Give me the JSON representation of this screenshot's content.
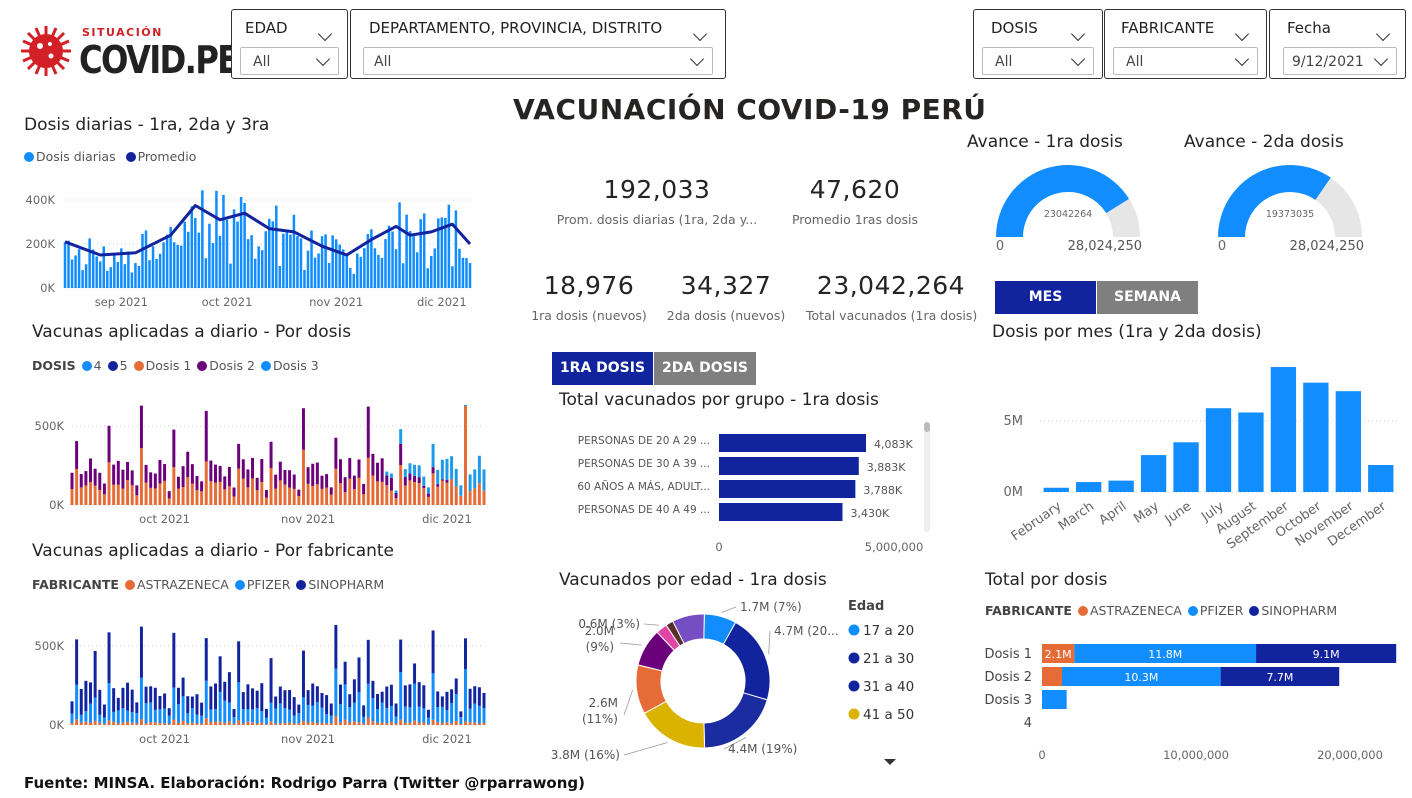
{
  "header": {
    "brand_small": "SITUACIÓN",
    "brand_large": "COVID.PE",
    "title": "VACUNACIÓN COVID-19 PERÚ"
  },
  "slicers": {
    "edad": {
      "label": "EDAD",
      "value": "All"
    },
    "region": {
      "label": "DEPARTAMENTO, PROVINCIA, DISTRITO",
      "value": "All"
    },
    "dosis": {
      "label": "DOSIS",
      "value": "All"
    },
    "fabricante": {
      "label": "FABRICANTE",
      "value": "All"
    },
    "fecha": {
      "label": "Fecha",
      "value": "9/12/2021"
    }
  },
  "colors": {
    "light_blue": "#118DFF",
    "dark_blue": "#12239E",
    "orange": "#E66C37",
    "purple": "#6B007B",
    "pink": "#E044A7",
    "violet": "#744EC2",
    "yellow": "#D9B300",
    "maroon": "#5B2C2C",
    "gray": "#7F7F7F"
  },
  "kpis": {
    "prom_diarias": {
      "value": "192,033",
      "label": "Prom. dosis diarias (1ra, 2da y..."
    },
    "prom_1ras": {
      "value": "47,620",
      "label": "Promedio 1ras dosis"
    },
    "d1_nuevos": {
      "value": "18,976",
      "label": "1ra dosis (nuevos)"
    },
    "d2_nuevos": {
      "value": "34,327",
      "label": "2da dosis (nuevos)"
    },
    "total_vac": {
      "value": "23,042,264",
      "label": "Total vacunados (1ra dosis)"
    }
  },
  "buttons": {
    "primera": "1RA DOSIS",
    "segunda": "2DA DOSIS",
    "mes": "MES",
    "semana": "SEMANA"
  },
  "footer": "Fuente: MINSA. Elaboración: Rodrigo Parra (Twitter @rparrawong)",
  "chart_data": [
    {
      "id": "daily",
      "type": "bar",
      "title": "Dosis diarias - 1ra, 2da y 3ra",
      "legend": [
        "Dosis diarias",
        "Promedio"
      ],
      "y_ticks": [
        "400K",
        "200K",
        "0K"
      ],
      "ylim": [
        0,
        500000
      ],
      "x_ticks": [
        "sep 2021",
        "oct 2021",
        "nov 2021",
        "dic 2021"
      ],
      "x_start": "2021-08-16",
      "x_end": "2021-12-09",
      "avg_line": [
        {
          "x": "2021-08-16",
          "y": 210000
        },
        {
          "x": "2021-08-26",
          "y": 150000
        },
        {
          "x": "2021-09-05",
          "y": 160000
        },
        {
          "x": "2021-09-15",
          "y": 240000
        },
        {
          "x": "2021-09-22",
          "y": 375000
        },
        {
          "x": "2021-09-29",
          "y": 310000
        },
        {
          "x": "2021-10-06",
          "y": 340000
        },
        {
          "x": "2021-10-13",
          "y": 270000
        },
        {
          "x": "2021-10-20",
          "y": 255000
        },
        {
          "x": "2021-10-28",
          "y": 190000
        },
        {
          "x": "2021-11-04",
          "y": 150000
        },
        {
          "x": "2021-11-11",
          "y": 220000
        },
        {
          "x": "2021-11-18",
          "y": 280000
        },
        {
          "x": "2021-11-22",
          "y": 240000
        },
        {
          "x": "2021-11-28",
          "y": 255000
        },
        {
          "x": "2021-12-04",
          "y": 290000
        },
        {
          "x": "2021-12-09",
          "y": 200000
        }
      ]
    },
    {
      "id": "by_dose",
      "type": "stacked_bar",
      "title": "Vacunas aplicadas a diario - Por dosis",
      "legend_title": "DOSIS",
      "series": [
        "4",
        "5",
        "Dosis 1",
        "Dosis 2",
        "Dosis 3"
      ],
      "y_ticks": [
        "500K",
        "0K"
      ],
      "ylim": [
        0,
        600000
      ],
      "x_ticks": [
        "oct 2021",
        "nov 2021",
        "dic 2021"
      ],
      "x_start": "2021-09-11",
      "x_end": "2021-12-09"
    },
    {
      "id": "by_maker",
      "type": "stacked_bar",
      "title": "Vacunas aplicadas a diario - Por fabricante",
      "legend_title": "FABRICANTE",
      "series": [
        "ASTRAZENECA",
        "PFIZER",
        "SINOPHARM"
      ],
      "y_ticks": [
        "500K",
        "0K"
      ],
      "ylim": [
        0,
        600000
      ],
      "x_ticks": [
        "oct 2021",
        "nov 2021",
        "dic 2021"
      ],
      "x_start": "2021-09-11",
      "x_end": "2021-12-09"
    },
    {
      "id": "gauge1",
      "type": "gauge",
      "title": "Avance - 1ra dosis",
      "value": 23042264,
      "value_label": "23042264",
      "min_label": "0",
      "max": 28024250,
      "max_label": "28,024,250"
    },
    {
      "id": "gauge2",
      "type": "gauge",
      "title": "Avance - 2da dosis",
      "value": 19373035,
      "value_label": "19373035",
      "min_label": "0",
      "max": 28024250,
      "max_label": "28,024,250"
    },
    {
      "id": "groups",
      "type": "hbar",
      "title": "Total vacunados por grupo - 1ra dosis",
      "categories": [
        "PERSONAS DE 20 A 29 ...",
        "PERSONAS DE 30 A 39 ...",
        "60 AÑOS A MÁS, ADULT...",
        "PERSONAS DE 40 A 49 ..."
      ],
      "values": [
        4083000,
        3883000,
        3788000,
        3430000
      ],
      "value_labels": [
        "4,083K",
        "3,883K",
        "3,788K",
        "3,430K"
      ],
      "xlim": [
        0,
        5000000
      ],
      "x_ticks": [
        "0",
        "5,000,000"
      ]
    },
    {
      "id": "age_donut",
      "type": "pie",
      "title": "Vacunados por edad - 1ra dosis",
      "legend_title": "Edad",
      "legend": [
        "17 a 20",
        "21 a 30",
        "31 a 40",
        "41 a 50"
      ],
      "slices": [
        {
          "value": 1.7,
          "label": "1.7M (7%)"
        },
        {
          "value": 4.7,
          "label": "4.7M (20..."
        },
        {
          "value": 4.4,
          "label": "4.4M (19%)"
        },
        {
          "value": 3.8,
          "label": "3.8M (16%)"
        },
        {
          "value": 2.6,
          "label": "2.6M (11%)"
        },
        {
          "value": 2.0,
          "label": "2.0M (9%)"
        },
        {
          "value": 0.6,
          "label": "0.6M (3%)"
        },
        {
          "value": 2.2,
          "label": ""
        }
      ]
    },
    {
      "id": "monthly",
      "type": "bar",
      "title": "Dosis por mes (1ra y 2da dosis)",
      "categories": [
        "February",
        "March",
        "April",
        "May",
        "June",
        "July",
        "August",
        "September",
        "October",
        "November",
        "December"
      ],
      "values": [
        300000,
        700000,
        800000,
        2600000,
        3500000,
        5900000,
        5600000,
        8800000,
        7700000,
        7100000,
        1900000
      ],
      "y_ticks": [
        "5M",
        "0M"
      ],
      "ylim": [
        0,
        10000000
      ]
    },
    {
      "id": "total_dose",
      "type": "stacked_hbar",
      "title": "Total por dosis",
      "legend_title": "FABRICANTE",
      "series": [
        "ASTRAZENECA",
        "PFIZER",
        "SINOPHARM"
      ],
      "categories": [
        "Dosis 1",
        "Dosis 2",
        "Dosis 3",
        "4"
      ],
      "values": [
        [
          2100000,
          11800000,
          9100000
        ],
        [
          1300000,
          10300000,
          7700000
        ],
        [
          0,
          1600000,
          0
        ],
        [
          0,
          0,
          0
        ]
      ],
      "value_labels": [
        [
          "2.1M",
          "11.8M",
          "9.1M"
        ],
        [
          "",
          "10.3M",
          "7.7M"
        ],
        [
          "",
          "",
          ""
        ],
        [
          "",
          "",
          ""
        ]
      ],
      "xlim": [
        0,
        25000000
      ],
      "x_ticks": [
        "0",
        "10,000,000",
        "20,000,000"
      ]
    }
  ]
}
